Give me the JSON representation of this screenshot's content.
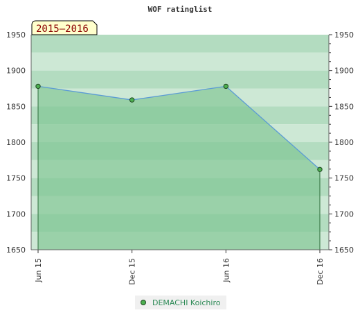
{
  "chart_data": {
    "type": "area",
    "title": "WOF ratinglist",
    "season_label": "2015–2016",
    "xlabel": "",
    "ylabel": "",
    "categories": [
      "Jun 15",
      "Dec 15",
      "Jun 16",
      "Dec 16"
    ],
    "series": [
      {
        "name": "DEMACHI Koichiro",
        "values": [
          1878,
          1859,
          1878,
          1762
        ]
      }
    ],
    "ylim": [
      1650,
      1950
    ],
    "yticks": [
      "1650",
      "1700",
      "1750",
      "1800",
      "1850",
      "1900",
      "1950"
    ],
    "grid": true,
    "legend": "bottom",
    "colors": {
      "line": "#5b9bd5",
      "marker": "#4caf50",
      "fill": "#7ec492",
      "band_dark": "#b3dcc0",
      "band_light": "#cde8d5",
      "band_lighter": "#dbeee1",
      "band_lightest": "#eef7f0",
      "label_bg": "#ffffcc"
    }
  }
}
